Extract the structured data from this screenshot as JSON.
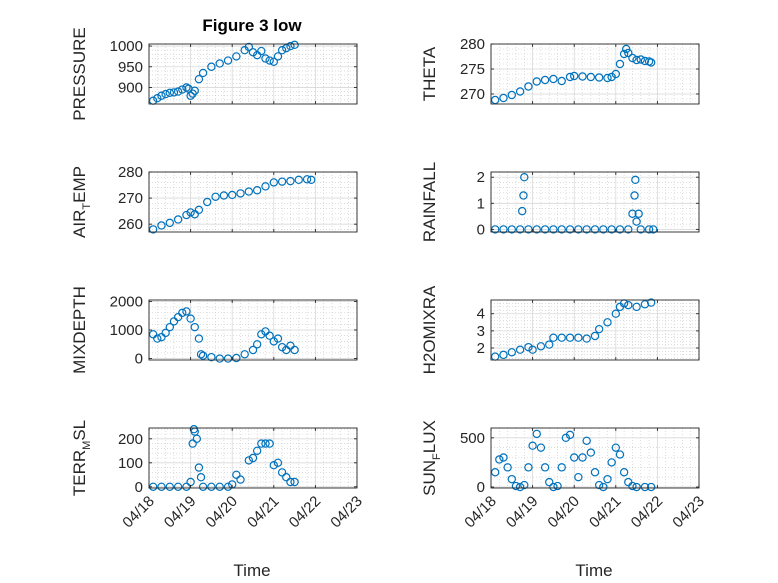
{
  "figure": {
    "title": "Figure 3 low",
    "xlabel": "Time",
    "marker_color": "#0072BD"
  },
  "chart_data": [
    {
      "type": "scatter",
      "title": "Figure 3 low",
      "ylabel": "PRESSURE",
      "ylim": [
        860,
        1005
      ],
      "yticks": [
        900,
        950,
        1000
      ],
      "x": [
        "04/18",
        "04/19",
        "04/20",
        "04/21",
        "04/22",
        "04/23"
      ],
      "xlim": [
        0,
        5
      ],
      "points": [
        [
          0.1,
          868
        ],
        [
          0.2,
          874
        ],
        [
          0.3,
          880
        ],
        [
          0.4,
          884
        ],
        [
          0.5,
          887
        ],
        [
          0.6,
          888
        ],
        [
          0.7,
          890
        ],
        [
          0.8,
          895
        ],
        [
          0.9,
          900
        ],
        [
          0.95,
          897
        ],
        [
          1.0,
          880
        ],
        [
          1.05,
          885
        ],
        [
          1.1,
          892
        ],
        [
          1.2,
          920
        ],
        [
          1.3,
          935
        ],
        [
          1.5,
          950
        ],
        [
          1.7,
          958
        ],
        [
          1.9,
          965
        ],
        [
          2.1,
          975
        ],
        [
          2.3,
          990
        ],
        [
          2.4,
          998
        ],
        [
          2.5,
          985
        ],
        [
          2.6,
          978
        ],
        [
          2.7,
          988
        ],
        [
          2.8,
          970
        ],
        [
          2.9,
          965
        ],
        [
          3.0,
          962
        ],
        [
          3.1,
          975
        ],
        [
          3.2,
          990
        ],
        [
          3.3,
          995
        ],
        [
          3.4,
          1000
        ],
        [
          3.5,
          1003
        ]
      ],
      "grid": true
    },
    {
      "type": "scatter",
      "title": "",
      "ylabel": "THETA",
      "ylim": [
        268,
        280
      ],
      "yticks": [
        270,
        275,
        280
      ],
      "x": [
        "04/18",
        "04/19",
        "04/20",
        "04/21",
        "04/22",
        "04/23"
      ],
      "xlim": [
        0,
        5
      ],
      "points": [
        [
          0.1,
          268.8
        ],
        [
          0.3,
          269.2
        ],
        [
          0.5,
          269.8
        ],
        [
          0.7,
          270.5
        ],
        [
          0.9,
          271.5
        ],
        [
          1.1,
          272.5
        ],
        [
          1.3,
          272.8
        ],
        [
          1.5,
          273.0
        ],
        [
          1.7,
          272.6
        ],
        [
          1.9,
          273.4
        ],
        [
          2.0,
          273.6
        ],
        [
          2.2,
          273.5
        ],
        [
          2.4,
          273.4
        ],
        [
          2.6,
          273.3
        ],
        [
          2.8,
          273.2
        ],
        [
          2.9,
          273.4
        ],
        [
          3.0,
          274.0
        ],
        [
          3.1,
          276.0
        ],
        [
          3.2,
          278.0
        ],
        [
          3.25,
          279.0
        ],
        [
          3.3,
          278.2
        ],
        [
          3.4,
          277.2
        ],
        [
          3.5,
          276.8
        ],
        [
          3.6,
          276.9
        ],
        [
          3.7,
          276.6
        ],
        [
          3.8,
          276.5
        ],
        [
          3.85,
          276.3
        ]
      ],
      "grid": true
    },
    {
      "type": "scatter",
      "title": "",
      "ylabel": "AIR_TEMP",
      "ylim": [
        257,
        280
      ],
      "yticks": [
        260,
        270,
        280
      ],
      "x": [
        "04/18",
        "04/19",
        "04/20",
        "04/21",
        "04/22",
        "04/23"
      ],
      "xlim": [
        0,
        5
      ],
      "points": [
        [
          0.1,
          258
        ],
        [
          0.3,
          259.5
        ],
        [
          0.5,
          260.5
        ],
        [
          0.7,
          261.8
        ],
        [
          0.9,
          263.5
        ],
        [
          1.0,
          264.5
        ],
        [
          1.1,
          263.8
        ],
        [
          1.2,
          265.5
        ],
        [
          1.4,
          268.5
        ],
        [
          1.6,
          270.5
        ],
        [
          1.8,
          271.0
        ],
        [
          2.0,
          271.2
        ],
        [
          2.2,
          271.8
        ],
        [
          2.4,
          272.5
        ],
        [
          2.6,
          273.0
        ],
        [
          2.8,
          274.5
        ],
        [
          3.0,
          276.0
        ],
        [
          3.2,
          276.3
        ],
        [
          3.4,
          276.5
        ],
        [
          3.6,
          277.0
        ],
        [
          3.8,
          277.2
        ],
        [
          3.9,
          277.0
        ]
      ],
      "grid": true
    },
    {
      "type": "scatter",
      "title": "",
      "ylabel": "RAINFALL",
      "ylim": [
        -0.1,
        2.2
      ],
      "yticks": [
        0,
        1,
        2
      ],
      "x": [
        "04/18",
        "04/19",
        "04/20",
        "04/21",
        "04/22",
        "04/23"
      ],
      "xlim": [
        0,
        5
      ],
      "points": [
        [
          0.1,
          0
        ],
        [
          0.3,
          0
        ],
        [
          0.5,
          0
        ],
        [
          0.7,
          0
        ],
        [
          0.75,
          0.7
        ],
        [
          0.78,
          1.3
        ],
        [
          0.8,
          2.0
        ],
        [
          0.9,
          0
        ],
        [
          1.1,
          0
        ],
        [
          1.3,
          0
        ],
        [
          1.5,
          0
        ],
        [
          1.7,
          0
        ],
        [
          1.9,
          0
        ],
        [
          2.1,
          0
        ],
        [
          2.3,
          0
        ],
        [
          2.5,
          0
        ],
        [
          2.7,
          0
        ],
        [
          2.9,
          0
        ],
        [
          3.1,
          0
        ],
        [
          3.3,
          0
        ],
        [
          3.4,
          0.6
        ],
        [
          3.45,
          1.3
        ],
        [
          3.47,
          1.9
        ],
        [
          3.5,
          0.3
        ],
        [
          3.55,
          0.6
        ],
        [
          3.6,
          0
        ],
        [
          3.8,
          0
        ],
        [
          3.9,
          0
        ]
      ],
      "grid": true
    },
    {
      "type": "scatter",
      "title": "",
      "ylabel": "MIXDEPTH",
      "ylim": [
        -50,
        2050
      ],
      "yticks": [
        0,
        1000,
        2000
      ],
      "x": [
        "04/18",
        "04/19",
        "04/20",
        "04/21",
        "04/22",
        "04/23"
      ],
      "xlim": [
        0,
        5
      ],
      "points": [
        [
          0.1,
          850
        ],
        [
          0.2,
          700
        ],
        [
          0.3,
          750
        ],
        [
          0.4,
          900
        ],
        [
          0.5,
          1100
        ],
        [
          0.6,
          1300
        ],
        [
          0.7,
          1450
        ],
        [
          0.8,
          1600
        ],
        [
          0.9,
          1650
        ],
        [
          1.0,
          1400
        ],
        [
          1.1,
          1100
        ],
        [
          1.2,
          700
        ],
        [
          1.25,
          150
        ],
        [
          1.3,
          100
        ],
        [
          1.5,
          50
        ],
        [
          1.7,
          0
        ],
        [
          1.9,
          0
        ],
        [
          2.1,
          20
        ],
        [
          2.3,
          150
        ],
        [
          2.5,
          300
        ],
        [
          2.6,
          500
        ],
        [
          2.7,
          850
        ],
        [
          2.8,
          950
        ],
        [
          2.9,
          800
        ],
        [
          3.0,
          600
        ],
        [
          3.1,
          700
        ],
        [
          3.2,
          400
        ],
        [
          3.3,
          300
        ],
        [
          3.4,
          450
        ],
        [
          3.5,
          300
        ]
      ],
      "grid": true
    },
    {
      "type": "scatter",
      "title": "",
      "ylabel": "H2OMIXRA",
      "ylim": [
        1.3,
        4.8
      ],
      "yticks": [
        2,
        3,
        4
      ],
      "x": [
        "04/18",
        "04/19",
        "04/20",
        "04/21",
        "04/22",
        "04/23"
      ],
      "xlim": [
        0,
        5
      ],
      "points": [
        [
          0.1,
          1.5
        ],
        [
          0.3,
          1.6
        ],
        [
          0.5,
          1.75
        ],
        [
          0.7,
          1.9
        ],
        [
          0.9,
          2.05
        ],
        [
          1.0,
          1.9
        ],
        [
          1.2,
          2.1
        ],
        [
          1.4,
          2.2
        ],
        [
          1.5,
          2.6
        ],
        [
          1.7,
          2.6
        ],
        [
          1.9,
          2.6
        ],
        [
          2.1,
          2.6
        ],
        [
          2.3,
          2.55
        ],
        [
          2.5,
          2.7
        ],
        [
          2.6,
          3.1
        ],
        [
          2.8,
          3.5
        ],
        [
          3.0,
          4.0
        ],
        [
          3.1,
          4.4
        ],
        [
          3.2,
          4.6
        ],
        [
          3.3,
          4.5
        ],
        [
          3.5,
          4.4
        ],
        [
          3.7,
          4.55
        ],
        [
          3.85,
          4.65
        ]
      ],
      "grid": true
    },
    {
      "type": "scatter",
      "title": "",
      "ylabel": "TERR_MSL",
      "ylim": [
        -5,
        245
      ],
      "yticks": [
        0,
        100,
        200
      ],
      "x": [
        "04/18",
        "04/19",
        "04/20",
        "04/21",
        "04/22",
        "04/23"
      ],
      "xlim": [
        0,
        5
      ],
      "points": [
        [
          0.1,
          0
        ],
        [
          0.3,
          0
        ],
        [
          0.5,
          0
        ],
        [
          0.7,
          0
        ],
        [
          0.9,
          0
        ],
        [
          1.0,
          20
        ],
        [
          1.05,
          180
        ],
        [
          1.08,
          240
        ],
        [
          1.1,
          230
        ],
        [
          1.15,
          200
        ],
        [
          1.2,
          80
        ],
        [
          1.25,
          40
        ],
        [
          1.3,
          0
        ],
        [
          1.5,
          0
        ],
        [
          1.7,
          0
        ],
        [
          1.9,
          0
        ],
        [
          2.0,
          10
        ],
        [
          2.1,
          50
        ],
        [
          2.2,
          30
        ],
        [
          2.4,
          110
        ],
        [
          2.5,
          120
        ],
        [
          2.6,
          150
        ],
        [
          2.7,
          180
        ],
        [
          2.8,
          180
        ],
        [
          2.9,
          180
        ],
        [
          3.0,
          90
        ],
        [
          3.1,
          100
        ],
        [
          3.2,
          60
        ],
        [
          3.3,
          40
        ],
        [
          3.4,
          20
        ],
        [
          3.5,
          20
        ]
      ],
      "grid": true
    },
    {
      "type": "scatter",
      "title": "",
      "ylabel": "SUN_FLUX",
      "ylim": [
        -10,
        600
      ],
      "yticks": [
        0,
        500
      ],
      "x": [
        "04/18",
        "04/19",
        "04/20",
        "04/21",
        "04/22",
        "04/23"
      ],
      "xlim": [
        0,
        5
      ],
      "points": [
        [
          0.1,
          150
        ],
        [
          0.2,
          280
        ],
        [
          0.3,
          300
        ],
        [
          0.4,
          200
        ],
        [
          0.5,
          80
        ],
        [
          0.6,
          10
        ],
        [
          0.7,
          0
        ],
        [
          0.8,
          20
        ],
        [
          0.9,
          200
        ],
        [
          1.0,
          420
        ],
        [
          1.1,
          540
        ],
        [
          1.2,
          400
        ],
        [
          1.3,
          200
        ],
        [
          1.4,
          50
        ],
        [
          1.5,
          0
        ],
        [
          1.6,
          10
        ],
        [
          1.7,
          200
        ],
        [
          1.8,
          500
        ],
        [
          1.9,
          530
        ],
        [
          2.0,
          300
        ],
        [
          2.1,
          100
        ],
        [
          2.2,
          300
        ],
        [
          2.3,
          470
        ],
        [
          2.4,
          350
        ],
        [
          2.5,
          150
        ],
        [
          2.6,
          20
        ],
        [
          2.7,
          0
        ],
        [
          2.8,
          80
        ],
        [
          2.9,
          250
        ],
        [
          3.0,
          400
        ],
        [
          3.1,
          330
        ],
        [
          3.2,
          150
        ],
        [
          3.3,
          50
        ],
        [
          3.4,
          10
        ],
        [
          3.5,
          0
        ],
        [
          3.7,
          0
        ],
        [
          3.85,
          0
        ]
      ],
      "grid": true
    }
  ]
}
